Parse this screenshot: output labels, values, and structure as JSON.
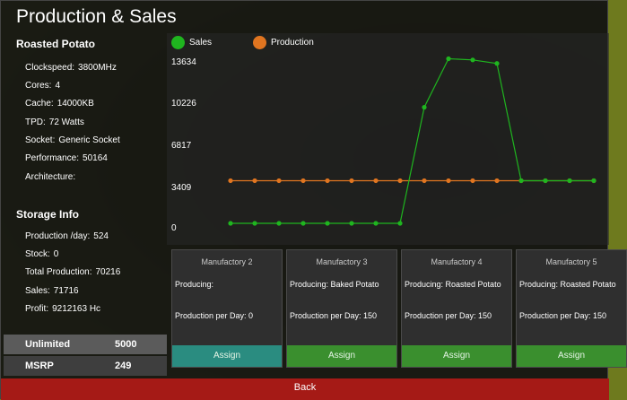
{
  "title": "Production & Sales",
  "product": {
    "name": "Roasted Potato",
    "specs": [
      {
        "label": "Clockspeed:",
        "value": "3800MHz"
      },
      {
        "label": "Cores:",
        "value": "4"
      },
      {
        "label": "Cache:",
        "value": "14000KB"
      },
      {
        "label": "TPD:",
        "value": "72 Watts"
      },
      {
        "label": "Socket:",
        "value": "Generic Socket"
      },
      {
        "label": "Performance:",
        "value": "50164"
      },
      {
        "label": "Architecture:",
        "value": ""
      }
    ]
  },
  "storage": {
    "title": "Storage Info",
    "items": [
      {
        "label": "Production /day:",
        "value": "524"
      },
      {
        "label": "Stock:",
        "value": "0"
      },
      {
        "label": "Total Production:",
        "value": "70216"
      },
      {
        "label": "Sales:",
        "value": "71716"
      },
      {
        "label": "Profit:",
        "value": "9212163 Hc"
      }
    ]
  },
  "pricing": {
    "unlimited_label": "Unlimited",
    "unlimited_value": "5000",
    "msrp_label": "MSRP",
    "msrp_value": "249"
  },
  "chart_data": {
    "type": "line",
    "title": "",
    "xlabel": "",
    "ylabel": "",
    "yticks": [
      "13634",
      "10226",
      "6817",
      "3409",
      "0"
    ],
    "ylim": [
      0,
      13634
    ],
    "legend_position": "top-left",
    "x": [
      1,
      2,
      3,
      4,
      5,
      6,
      7,
      8,
      9,
      10,
      11,
      12,
      13,
      14,
      15,
      16
    ],
    "series": [
      {
        "name": "Sales",
        "color": "#1fb51f",
        "values": [
          0,
          0,
          0,
          0,
          0,
          0,
          0,
          0,
          9800,
          13900,
          13800,
          13500,
          3600,
          3600,
          3600,
          3600
        ]
      },
      {
        "name": "Production",
        "color": "#e07520",
        "values": [
          3600,
          3600,
          3600,
          3600,
          3600,
          3600,
          3600,
          3600,
          3600,
          3600,
          3600,
          3600,
          3600,
          3600,
          3600,
          3600
        ]
      }
    ]
  },
  "factories": [
    {
      "name": "Manufactory 2",
      "producing": "Producing:",
      "ppd": "Production per Day: 0",
      "assign": "Assign",
      "accent": "#2a8c80"
    },
    {
      "name": "Manufactory 3",
      "producing": "Producing: Baked Potato",
      "ppd": "Production per Day: 150",
      "assign": "Assign",
      "accent": "#3a8f2e"
    },
    {
      "name": "Manufactory 4",
      "producing": "Producing: Roasted Potato",
      "ppd": "Production per Day: 150",
      "assign": "Assign",
      "accent": "#3a8f2e"
    },
    {
      "name": "Manufactory 5",
      "producing": "Producing: Roasted Potato",
      "ppd": "Production per Day: 150",
      "assign": "Assign",
      "accent": "#3a8f2e"
    }
  ],
  "back_label": "Back"
}
